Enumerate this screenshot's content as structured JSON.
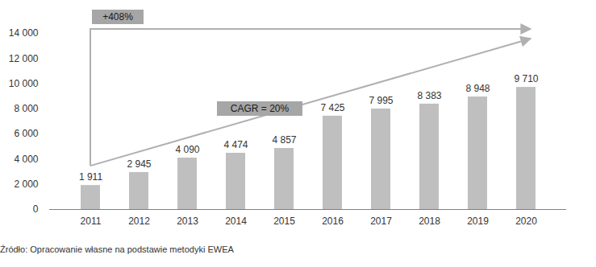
{
  "chart_data": {
    "type": "bar",
    "categories": [
      "2011",
      "2012",
      "2013",
      "2014",
      "2015",
      "2016",
      "2017",
      "2018",
      "2019",
      "2020"
    ],
    "values": [
      1911,
      2945,
      4090,
      4474,
      4857,
      7425,
      7995,
      8383,
      8948,
      9710
    ],
    "value_labels": [
      "1 911",
      "2 945",
      "4 090",
      "4 474",
      "4 857",
      "7 425",
      "7 995",
      "8 383",
      "8 948",
      "9 710"
    ],
    "data_labels": true,
    "color": "#bfbfbf",
    "ylim": [
      0,
      14000
    ],
    "yticks": [
      0,
      {
        "value": 2000,
        "label": "2 000"
      },
      {
        "value": 4000,
        "label": "4 000"
      },
      {
        "value": 6000,
        "label": "6 000"
      },
      {
        "value": 8000,
        "label": "8 000"
      },
      {
        "value": 10000,
        "label": "10 000"
      },
      {
        "value": 12000,
        "label": "12 000"
      },
      {
        "value": 14000,
        "label": "14 000"
      }
    ],
    "grid": false,
    "annotations": [
      "+408%",
      "CAGR = 20%"
    ],
    "caption": "Źródło: Opracowanie własne na podstawie metodyki EWEA"
  }
}
